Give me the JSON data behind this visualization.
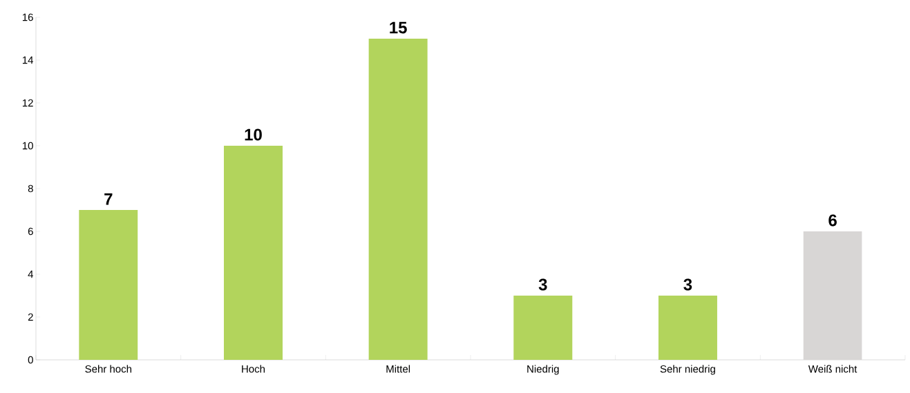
{
  "chart_data": {
    "type": "bar",
    "categories": [
      "Sehr hoch",
      "Hoch",
      "Mittel",
      "Niedrig",
      "Sehr niedrig",
      "Weiß nicht"
    ],
    "values": [
      7,
      10,
      15,
      3,
      3,
      6
    ],
    "colors": [
      "#b2d45c",
      "#b2d45c",
      "#b2d45c",
      "#b2d45c",
      "#b2d45c",
      "#d8d6d5"
    ],
    "ylim": [
      0,
      16
    ],
    "yticks": [
      0,
      2,
      4,
      6,
      8,
      10,
      12,
      14,
      16
    ],
    "data_labels": true,
    "grid": false
  }
}
